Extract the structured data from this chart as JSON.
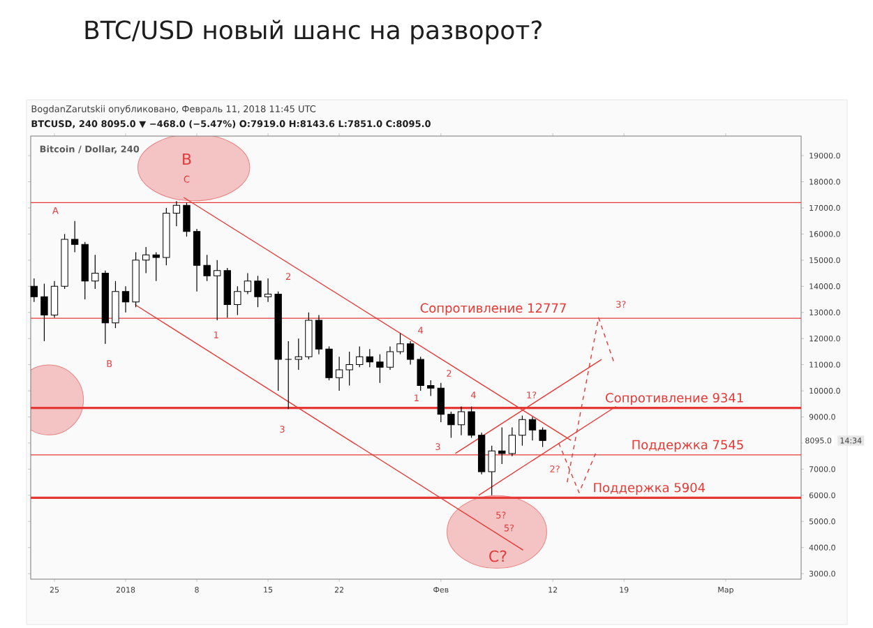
{
  "chart_data": {
    "type": "candlestick",
    "title": "BTC/USD новый шанс на разворот?",
    "subtitle": "BogdanZarutskii опубликовано, Февраль 11, 2018 11:45 UTC",
    "x": [
      "2017-12-23",
      "2017-12-24",
      "2017-12-25",
      "2017-12-26",
      "2017-12-27",
      "2017-12-28",
      "2017-12-29",
      "2017-12-30",
      "2017-12-31",
      "2018-01-01",
      "2018-01-02",
      "2018-01-03",
      "2018-01-04",
      "2018-01-05",
      "2018-01-06",
      "2018-01-07",
      "2018-01-08",
      "2018-01-09",
      "2018-01-10",
      "2018-01-11",
      "2018-01-12",
      "2018-01-13",
      "2018-01-14",
      "2018-01-15",
      "2018-01-16",
      "2018-01-17",
      "2018-01-18",
      "2018-01-19",
      "2018-01-20",
      "2018-01-21",
      "2018-01-22",
      "2018-01-23",
      "2018-01-24",
      "2018-01-25",
      "2018-01-26",
      "2018-01-27",
      "2018-01-28",
      "2018-01-29",
      "2018-01-30",
      "2018-01-31",
      "2018-02-01",
      "2018-02-02",
      "2018-02-03",
      "2018-02-04",
      "2018-02-05",
      "2018-02-06",
      "2018-02-07",
      "2018-02-08",
      "2018-02-09",
      "2018-02-10",
      "2018-02-11"
    ],
    "ohlc": [
      [
        14000,
        14300,
        13400,
        13600
      ],
      [
        13600,
        14100,
        11900,
        12900
      ],
      [
        12900,
        14200,
        12800,
        14000
      ],
      [
        14000,
        16000,
        13900,
        15800
      ],
      [
        15800,
        16500,
        15300,
        15600
      ],
      [
        15600,
        15700,
        13500,
        14200
      ],
      [
        14200,
        15200,
        13900,
        14500
      ],
      [
        14500,
        14600,
        11800,
        12600
      ],
      [
        12600,
        14200,
        12400,
        13800
      ],
      [
        13800,
        14000,
        13000,
        13400
      ],
      [
        13400,
        15300,
        13200,
        15000
      ],
      [
        15000,
        15500,
        14500,
        15200
      ],
      [
        15200,
        15300,
        14200,
        15100
      ],
      [
        15100,
        17000,
        14800,
        16800
      ],
      [
        16800,
        17260,
        16300,
        17100
      ],
      [
        17100,
        17200,
        15900,
        16100
      ],
      [
        16100,
        16200,
        13800,
        14800
      ],
      [
        14800,
        15200,
        14200,
        14400
      ],
      [
        14400,
        15000,
        12700,
        14600
      ],
      [
        14600,
        14700,
        12800,
        13300
      ],
      [
        13300,
        14000,
        12900,
        13800
      ],
      [
        13800,
        14500,
        13700,
        14200
      ],
      [
        14200,
        14400,
        13200,
        13600
      ],
      [
        13600,
        14300,
        13400,
        13700
      ],
      [
        13700,
        13800,
        10000,
        11200
      ],
      [
        11200,
        11900,
        9300,
        11200
      ],
      [
        11200,
        12000,
        10800,
        11300
      ],
      [
        11300,
        13000,
        11200,
        12700
      ],
      [
        12700,
        12900,
        11400,
        11600
      ],
      [
        11600,
        11700,
        10400,
        10500
      ],
      [
        10500,
        11300,
        10000,
        10800
      ],
      [
        10800,
        11500,
        10200,
        11000
      ],
      [
        11000,
        11700,
        10900,
        11300
      ],
      [
        11300,
        11600,
        10900,
        11100
      ],
      [
        11100,
        11400,
        10300,
        10900
      ],
      [
        10900,
        11700,
        10800,
        11500
      ],
      [
        11500,
        12200,
        11400,
        11800
      ],
      [
        11800,
        11900,
        11000,
        11200
      ],
      [
        11200,
        11300,
        10000,
        10200
      ],
      [
        10200,
        10400,
        9800,
        10100
      ],
      [
        10100,
        10300,
        8800,
        9100
      ],
      [
        9100,
        9200,
        8200,
        8700
      ],
      [
        8700,
        9400,
        8300,
        9200
      ],
      [
        9200,
        9400,
        8200,
        8300
      ],
      [
        8300,
        8400,
        6800,
        6900
      ],
      [
        6900,
        7900,
        6000,
        7700
      ],
      [
        7700,
        8600,
        7200,
        7600
      ],
      [
        7600,
        8600,
        7500,
        8300
      ],
      [
        8300,
        9050,
        7900,
        8900
      ],
      [
        8900,
        9000,
        8100,
        8500
      ],
      [
        8500,
        8600,
        7850,
        8095
      ]
    ],
    "series": [
      {
        "type": "line",
        "color": "#e53935",
        "x": [
          "2018-01-06T17:00",
          "2018-02-13T19:00"
        ],
        "values": [
          17400,
          8100
        ]
      },
      {
        "type": "line",
        "color": "#e53935",
        "x": [
          "2018-01-01T22:00",
          "2018-02-09T02:00"
        ],
        "values": [
          13300,
          3900
        ]
      },
      {
        "type": "line",
        "color": "#e53935",
        "x": [
          "2018-02-02T10:00",
          "2018-02-16T19:00"
        ],
        "values": [
          7600,
          11200
        ]
      },
      {
        "type": "line",
        "color": "#e53935",
        "x": [
          "2018-02-04T17:00",
          "2018-02-18T05:00"
        ],
        "values": [
          6000,
          9400
        ]
      },
      {
        "type": "line",
        "color": "#e53935",
        "line_style": "dashed",
        "x": [
          "2018-02-12T14:00",
          "2018-02-14T14:00",
          "2018-02-16T05:00"
        ],
        "values": [
          8000,
          6100,
          7600
        ]
      },
      {
        "type": "line",
        "color": "#e53935",
        "line_style": "dashed",
        "x": [
          "2018-02-13T10:00",
          "2018-02-16T12:00",
          "2018-02-18T00:00"
        ],
        "values": [
          6500,
          12800,
          11100
        ]
      }
    ],
    "xlim": [
      "2017-12-22T16:00",
      "2018-03-08T10:00"
    ],
    "xticks": [
      {
        "value": "2017-12-25",
        "label": "25"
      },
      {
        "value": "2018-01-01",
        "label": "2018"
      },
      {
        "value": "2018-01-08",
        "label": "8"
      },
      {
        "value": "2018-01-15",
        "label": "15"
      },
      {
        "value": "2018-01-22",
        "label": "22"
      },
      {
        "value": "2018-02-01",
        "label": "Фев"
      },
      {
        "value": "2018-02-12",
        "label": "12"
      },
      {
        "value": "2018-02-19",
        "label": "19"
      },
      {
        "value": "2018-03-01",
        "label": "Мар"
      }
    ],
    "ylim": [
      2790,
      19750
    ],
    "yticks": [
      {
        "value": 3000,
        "label": "3000.0"
      },
      {
        "value": 4000,
        "label": "4000.0"
      },
      {
        "value": 5000,
        "label": "5000.0"
      },
      {
        "value": 6000,
        "label": "6000.0"
      },
      {
        "value": 7000,
        "label": "7000.0"
      },
      {
        "value": 8000,
        "label": null
      },
      {
        "value": 9000,
        "label": "9000.0"
      },
      {
        "value": 10000,
        "label": "10000.0"
      },
      {
        "value": 11000,
        "label": "11000.0"
      },
      {
        "value": 12000,
        "label": "12000.0"
      },
      {
        "value": 13000,
        "label": "13000.0"
      },
      {
        "value": 14000,
        "label": "14000.0"
      },
      {
        "value": 15000,
        "label": "15000.0"
      },
      {
        "value": 16000,
        "label": "16000.0"
      },
      {
        "value": 17000,
        "label": "17000.0"
      },
      {
        "value": 18000,
        "label": "18000.0"
      },
      {
        "value": 19000,
        "label": "19000.0"
      }
    ],
    "ref_lines": [
      {
        "axis": "y",
        "value": 17200,
        "color": "#e53935"
      },
      {
        "axis": "y",
        "value": 12777,
        "label": "Сопротивление 12777",
        "color": "#e53935"
      },
      {
        "axis": "y",
        "value": 9341,
        "label": "Сопротивление 9341",
        "color": "#e53935"
      },
      {
        "axis": "y",
        "value": 7545,
        "label": "Поддержка 7545",
        "color": "#e53935"
      },
      {
        "axis": "y",
        "value": 5904,
        "label": "Поддержка 5904",
        "color": "#e53935"
      }
    ],
    "annotations": [
      "BTCUSD, 240  8095.0 ▼ −468.0 (−5.47%) O:7919.0 H:8143.6 L:7851.0 C:8095.0",
      "Bitcoin / Dollar, 240",
      "8095.0",
      "14:34",
      "A",
      "B",
      "C",
      "B",
      "1",
      "2",
      "3",
      "4",
      "2",
      "1",
      "4",
      "3",
      "1?",
      "2?",
      "3?",
      "5?",
      "5?",
      "C?"
    ]
  }
}
